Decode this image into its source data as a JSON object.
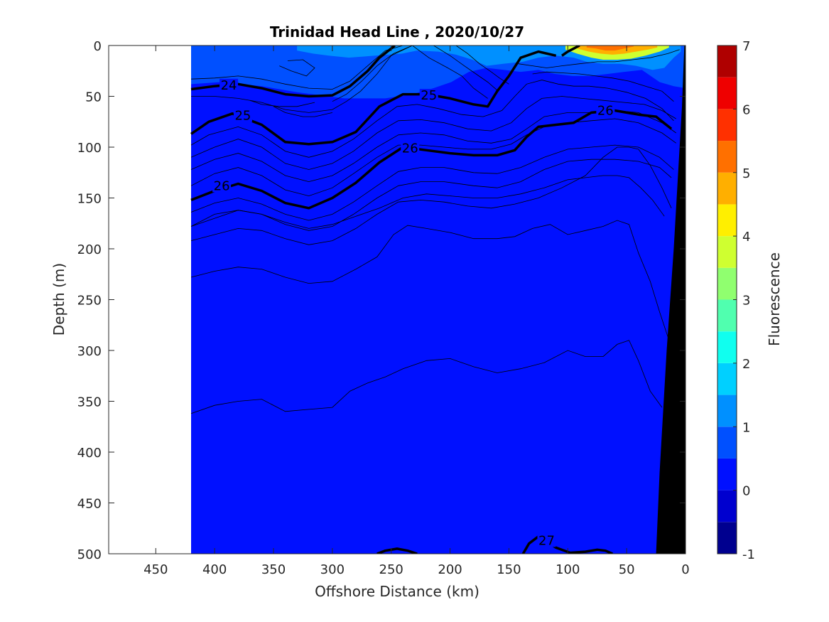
{
  "chart_data": {
    "type": "heatmap",
    "title": "Trinidad Head Line , 2020/10/27",
    "xlabel": "Offshore Distance (km)",
    "ylabel": "Depth (m)",
    "colorbar_label": "Fluorescence",
    "x_reversed": true,
    "y_reversed": true,
    "xlim": [
      490,
      0
    ],
    "ylim": [
      500,
      0
    ],
    "x_ticks": [
      450,
      400,
      350,
      300,
      250,
      200,
      150,
      100,
      50,
      0
    ],
    "y_ticks": [
      0,
      50,
      100,
      150,
      200,
      250,
      300,
      350,
      400,
      450,
      500
    ],
    "colorbar": {
      "range": [
        -1,
        7
      ],
      "ticks": [
        -1,
        0,
        1,
        2,
        3,
        4,
        5,
        6,
        7
      ],
      "levels": [
        -1,
        -0.5,
        0,
        0.5,
        1,
        1.5,
        2,
        2.5,
        3,
        3.5,
        4,
        4.5,
        5,
        5.5,
        6,
        6.5,
        7
      ],
      "colors": [
        "#00008f",
        "#0000cf",
        "#0010ff",
        "#0050ff",
        "#0090ff",
        "#00d0ff",
        "#10ffef",
        "#50ffaf",
        "#90ff6f",
        "#cfff30",
        "#ffef00",
        "#ffaf00",
        "#ff7000",
        "#ff3000",
        "#ef0000",
        "#af0000"
      ]
    },
    "data_extent_km": [
      420,
      0
    ],
    "background_fluorescence": 0.3,
    "high_fluorescence_patches": [
      {
        "x": [
          420,
          395,
          360,
          330,
          290,
          255,
          232,
          214,
          199,
          184,
          169,
          154,
          140,
          125,
          111,
          96,
          81,
          66,
          52,
          37,
          22,
          10,
          0
        ],
        "top": [
          0,
          0,
          0,
          0,
          0,
          0,
          0,
          0,
          0,
          0,
          0,
          0,
          0,
          0,
          0,
          0,
          0,
          0,
          0,
          0,
          0,
          0,
          0
        ],
        "bottom": [
          38,
          36,
          40,
          46,
          52,
          52,
          48,
          42,
          36,
          26,
          22,
          24,
          26,
          24,
          28,
          30,
          30,
          28,
          26,
          24,
          36,
          40,
          42
        ],
        "level": 0.7
      },
      {
        "x": [
          330,
          316,
          303,
          286,
          264,
          241,
          228,
          210,
          195,
          181,
          169,
          155,
          138,
          125,
          110,
          95,
          84,
          70,
          56,
          42,
          28,
          18,
          10,
          4
        ],
        "top": [
          0,
          0,
          0,
          0,
          0,
          0,
          0,
          0,
          0,
          0,
          0,
          0,
          0,
          0,
          0,
          0,
          0,
          0,
          0,
          0,
          0,
          0,
          0,
          0
        ],
        "bottom": [
          5,
          8,
          10,
          12,
          10,
          8,
          5,
          6,
          9,
          14,
          20,
          18,
          16,
          12,
          10,
          12,
          16,
          18,
          18,
          20,
          24,
          22,
          12,
          6
        ],
        "level": 1.2
      },
      {
        "x": [
          102,
          92,
          80,
          70,
          58,
          46,
          34,
          22,
          14
        ],
        "top": [
          0,
          0,
          0,
          0,
          0,
          0,
          0,
          0,
          0
        ],
        "bottom": [
          4,
          8,
          12,
          14,
          14,
          13,
          10,
          6,
          2
        ],
        "level": 3.5
      },
      {
        "x": [
          92,
          82,
          72,
          62,
          52,
          42,
          32,
          24
        ],
        "top": [
          0,
          0,
          0,
          0,
          0,
          0,
          0,
          0
        ],
        "bottom": [
          3,
          6,
          8,
          9,
          8,
          6,
          4,
          2
        ],
        "level": 4.5
      },
      {
        "x": [
          84,
          76,
          68,
          60,
          52,
          44
        ],
        "top": [
          0,
          0,
          0,
          0,
          0,
          0
        ],
        "bottom": [
          2,
          3,
          5,
          5,
          3,
          1
        ],
        "level": 5.2
      }
    ],
    "contours": [
      {
        "level": 24,
        "bold": true,
        "x": [
          420,
          400,
          380,
          360,
          340,
          320,
          300,
          285,
          270,
          260,
          250,
          247
        ],
        "y": [
          43,
          40,
          38,
          42,
          48,
          50,
          49,
          40,
          25,
          12,
          3,
          0
        ]
      },
      {
        "level": 24,
        "bold": true,
        "x": [
          105,
          100,
          95,
          90
        ],
        "y": [
          10,
          6,
          3,
          0
        ]
      },
      {
        "level": 25,
        "bold": true,
        "x": [
          420,
          405,
          385,
          360,
          340,
          320,
          300,
          280,
          260,
          240,
          220,
          200,
          180,
          168,
          160,
          150,
          140,
          125,
          110
        ],
        "y": [
          87,
          75,
          67,
          78,
          95,
          97,
          95,
          85,
          60,
          48,
          48,
          52,
          58,
          60,
          45,
          30,
          12,
          6,
          10
        ]
      },
      {
        "level": 26,
        "bold": true,
        "x": [
          420,
          400,
          380,
          360,
          340,
          320,
          300,
          280,
          260,
          240,
          220,
          200,
          180,
          160,
          145,
          135,
          125,
          110,
          95,
          80,
          60,
          40,
          25,
          12
        ],
        "y": [
          152,
          143,
          136,
          143,
          155,
          160,
          150,
          135,
          115,
          100,
          103,
          106,
          108,
          108,
          103,
          90,
          80,
          78,
          76,
          66,
          64,
          68,
          70,
          82
        ]
      },
      {
        "level": 27,
        "bold": true,
        "x": [
          262,
          255,
          245,
          236,
          228
        ],
        "y": [
          500,
          497,
          495,
          497,
          500
        ]
      },
      {
        "level": 27,
        "bold": true,
        "x": [
          138,
          133,
          125,
          110,
          98,
          85,
          75,
          68,
          62
        ],
        "y": [
          500,
          490,
          483,
          494,
          499,
          498,
          496,
          497,
          500
        ]
      }
    ],
    "contour_labels": [
      {
        "text": "24",
        "x": 388,
        "y": 39
      },
      {
        "text": "25",
        "x": 218,
        "y": 49
      },
      {
        "text": "25",
        "x": 376,
        "y": 69
      },
      {
        "text": "26",
        "x": 234,
        "y": 101
      },
      {
        "text": "26",
        "x": 68,
        "y": 64
      },
      {
        "text": "26",
        "x": 394,
        "y": 138
      },
      {
        "text": "27",
        "x": 118,
        "y": 487
      }
    ],
    "thin_contours": [
      {
        "x": [
          420,
          400,
          380,
          360,
          340,
          320,
          300,
          285,
          270,
          255,
          240
        ],
        "y": [
          33,
          32,
          30,
          33,
          38,
          42,
          43,
          35,
          20,
          5,
          0
        ]
      },
      {
        "x": [
          420,
          400,
          380,
          360,
          340,
          320,
          300,
          288,
          276,
          262,
          250,
          232
        ],
        "y": [
          50,
          50,
          52,
          56,
          63,
          66,
          63,
          55,
          45,
          28,
          10,
          0
        ]
      },
      {
        "x": [
          350,
          340,
          325,
          315,
          300
        ],
        "y": [
          60,
          66,
          70,
          70,
          66
        ]
      },
      {
        "x": [
          370,
          360,
          345,
          330,
          315
        ],
        "y": [
          54,
          58,
          60,
          60,
          56
        ]
      },
      {
        "x": [
          345,
          335,
          322,
          315,
          325,
          338
        ],
        "y": [
          20,
          25,
          30,
          22,
          14,
          15
        ]
      },
      {
        "x": [
          300,
          288,
          275,
          262,
          248,
          232
        ],
        "y": [
          55,
          48,
          35,
          20,
          8,
          0
        ]
      },
      {
        "x": [
          232,
          218,
          202,
          190,
          180,
          168
        ],
        "y": [
          0,
          12,
          22,
          30,
          42,
          52
        ]
      },
      {
        "x": [
          214,
          200,
          188,
          178,
          168,
          160
        ],
        "y": [
          0,
          10,
          20,
          28,
          36,
          44
        ]
      },
      {
        "x": [
          195,
          185,
          175,
          165,
          158,
          150
        ],
        "y": [
          0,
          8,
          18,
          26,
          32,
          38
        ]
      },
      {
        "x": [
          142,
          130,
          118,
          105,
          90,
          75,
          60,
          45,
          30,
          15,
          5
        ],
        "y": [
          18,
          20,
          22,
          20,
          18,
          16,
          16,
          14,
          12,
          8,
          4
        ]
      },
      {
        "x": [
          130,
          118,
          104,
          90,
          76,
          62,
          48,
          34,
          20,
          10
        ],
        "y": [
          28,
          26,
          27,
          28,
          30,
          32,
          35,
          40,
          45,
          55
        ]
      },
      {
        "x": [
          420,
          405,
          380,
          360,
          340,
          320,
          300,
          282,
          262,
          245,
          228,
          210,
          190,
          172,
          156,
          145,
          135,
          122,
          108,
          95,
          82,
          66,
          50,
          34,
          20,
          10
        ],
        "y": [
          98,
          88,
          80,
          88,
          104,
          110,
          104,
          92,
          74,
          60,
          58,
          62,
          68,
          70,
          64,
          50,
          38,
          34,
          38,
          40,
          40,
          42,
          46,
          52,
          62,
          74
        ]
      },
      {
        "x": [
          420,
          400,
          380,
          360,
          340,
          320,
          300,
          282,
          262,
          244,
          225,
          205,
          185,
          165,
          148,
          135,
          122,
          105,
          88,
          70,
          52,
          35,
          20,
          8
        ],
        "y": [
          110,
          100,
          92,
          100,
          116,
          122,
          116,
          104,
          86,
          74,
          73,
          76,
          82,
          84,
          76,
          62,
          52,
          50,
          52,
          54,
          56,
          58,
          64,
          72
        ]
      },
      {
        "x": [
          420,
          400,
          380,
          360,
          340,
          320,
          300,
          282,
          262,
          244,
          225,
          205,
          185,
          165,
          148,
          135,
          120,
          100,
          80,
          60,
          40,
          20,
          8
        ],
        "y": [
          122,
          112,
          106,
          114,
          128,
          134,
          128,
          116,
          100,
          88,
          86,
          88,
          94,
          96,
          92,
          82,
          70,
          66,
          66,
          64,
          66,
          76,
          86
        ]
      },
      {
        "x": [
          420,
          400,
          380,
          360,
          340,
          320,
          300,
          282,
          262,
          244,
          225,
          205,
          185,
          165,
          148,
          135,
          120,
          100,
          80,
          60,
          40,
          20,
          8
        ],
        "y": [
          138,
          126,
          120,
          128,
          142,
          148,
          140,
          126,
          110,
          98,
          98,
          100,
          102,
          102,
          97,
          88,
          80,
          76,
          74,
          72,
          76,
          86,
          96
        ]
      },
      {
        "x": [
          420,
          400,
          380,
          360,
          340,
          320,
          300,
          282,
          262,
          244,
          225,
          205,
          180,
          160,
          140,
          120,
          100,
          80,
          60,
          40,
          22,
          10
        ],
        "y": [
          164,
          155,
          150,
          156,
          166,
          172,
          166,
          154,
          138,
          124,
          120,
          120,
          125,
          126,
          120,
          110,
          102,
          100,
          98,
          100,
          110,
          122
        ]
      },
      {
        "x": [
          420,
          400,
          380,
          360,
          340,
          320,
          300,
          282,
          262,
          244,
          225,
          205,
          180,
          160,
          140,
          120,
          100,
          80,
          60,
          40,
          22,
          12
        ],
        "y": [
          178,
          170,
          162,
          166,
          176,
          182,
          178,
          166,
          150,
          138,
          134,
          134,
          138,
          140,
          134,
          122,
          114,
          112,
          112,
          114,
          120,
          130
        ]
      },
      {
        "x": [
          420,
          400,
          380,
          360,
          340,
          320,
          300,
          280,
          262,
          244,
          225,
          205,
          185,
          165,
          145,
          125,
          105,
          85,
          70,
          58,
          48,
          40,
          30,
          20,
          12
        ],
        "y": [
          192,
          186,
          180,
          182,
          190,
          196,
          192,
          180,
          166,
          154,
          152,
          154,
          158,
          160,
          156,
          150,
          140,
          128,
          110,
          100,
          100,
          102,
          118,
          140,
          160
        ]
      },
      {
        "x": [
          420,
          400,
          380,
          360,
          340,
          320,
          300,
          280,
          260,
          240,
          220,
          200,
          180,
          160,
          140,
          120,
          100,
          85,
          70,
          58,
          48,
          38,
          28,
          18
        ],
        "y": [
          178,
          166,
          162,
          166,
          174,
          180,
          176,
          168,
          160,
          150,
          146,
          148,
          150,
          150,
          146,
          140,
          132,
          130,
          128,
          128,
          130,
          140,
          152,
          168
        ]
      },
      {
        "x": [
          420,
          400,
          380,
          360,
          340,
          320,
          300,
          280,
          262,
          248,
          236,
          220,
          200,
          180,
          160,
          145,
          130,
          115,
          100,
          85,
          70,
          58,
          48,
          40,
          30,
          22,
          14
        ],
        "y": [
          228,
          222,
          218,
          220,
          228,
          234,
          232,
          220,
          208,
          186,
          177,
          180,
          184,
          190,
          190,
          188,
          180,
          176,
          186,
          182,
          178,
          172,
          176,
          204,
          232,
          262,
          290
        ]
      },
      {
        "x": [
          420,
          400,
          380,
          360,
          340,
          320,
          300,
          285,
          270,
          255,
          240,
          220,
          200,
          180,
          160,
          140,
          120,
          100,
          85,
          70,
          58,
          48,
          40,
          30,
          20
        ],
        "y": [
          362,
          354,
          350,
          348,
          360,
          358,
          356,
          340,
          332,
          326,
          318,
          310,
          308,
          316,
          322,
          318,
          312,
          300,
          306,
          306,
          294,
          290,
          310,
          340,
          356
        ]
      }
    ]
  }
}
